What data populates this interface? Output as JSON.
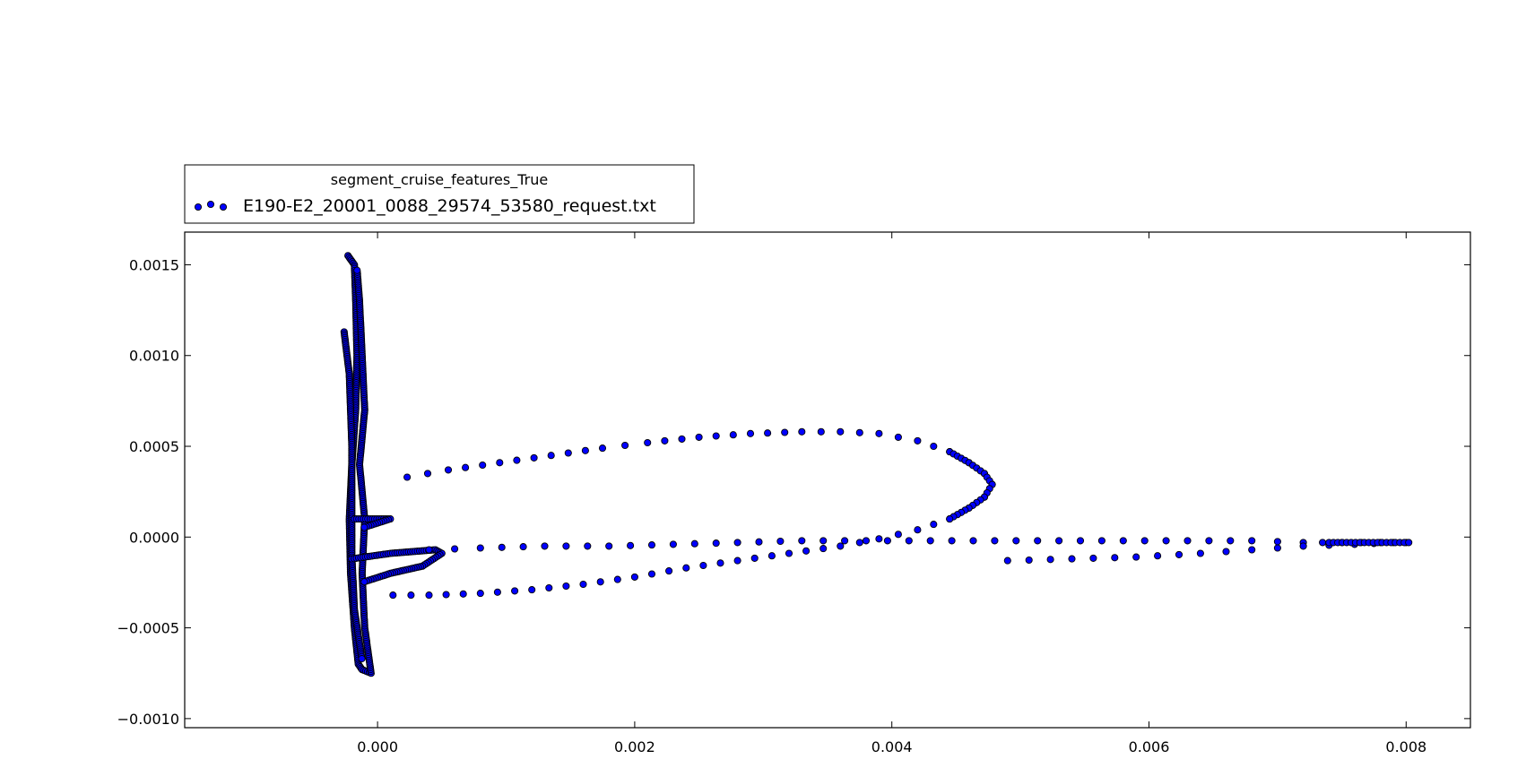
{
  "chart_data": {
    "type": "scatter",
    "title": "",
    "xlabel": "",
    "ylabel": "",
    "xlim": [
      -0.0015,
      0.0085
    ],
    "ylim": [
      -0.00105,
      0.00168
    ],
    "x_ticks": [
      0.0,
      0.002,
      0.004,
      0.006,
      0.008
    ],
    "x_tick_labels": [
      "0.000",
      "0.002",
      "0.004",
      "0.006",
      "0.008"
    ],
    "y_ticks": [
      -0.001,
      -0.0005,
      0.0,
      0.0005,
      0.001,
      0.0015
    ],
    "y_tick_labels": [
      "−0.0010",
      "−0.0005",
      "0.0000",
      "0.0005",
      "0.0010",
      "0.0015"
    ],
    "grid": false,
    "legend": {
      "placement": "above-top-left",
      "title": "segment_cruise_features_True",
      "entries": [
        "E190-E2_20001_0088_29574_53580_request.txt"
      ]
    },
    "marker_color": "#0000ff",
    "marker_edge_color": "#000000",
    "series": [
      {
        "name": "E190-E2_20001_0088_29574_53580_request.txt",
        "loop_upper": [
          [
            0.00023,
            0.00033
          ],
          [
            0.00055,
            0.00037
          ],
          [
            0.00095,
            0.00041
          ],
          [
            0.00135,
            0.00045
          ],
          [
            0.00175,
            0.00049
          ],
          [
            0.0021,
            0.00052
          ],
          [
            0.0025,
            0.00055
          ],
          [
            0.0029,
            0.00057
          ],
          [
            0.0033,
            0.00058
          ],
          [
            0.0036,
            0.00058
          ],
          [
            0.0039,
            0.00057
          ],
          [
            0.0042,
            0.00053
          ],
          [
            0.00445,
            0.00047
          ],
          [
            0.0046,
            0.00041
          ],
          [
            0.00472,
            0.00035
          ],
          [
            0.00478,
            0.00029
          ],
          [
            0.00472,
            0.00022
          ],
          [
            0.0046,
            0.00016
          ],
          [
            0.00445,
            0.0001
          ],
          [
            0.0042,
            4e-05
          ],
          [
            0.0039,
            -1e-05
          ],
          [
            0.0036,
            -5e-05
          ],
          [
            0.0032,
            -9e-05
          ],
          [
            0.0028,
            -0.00013
          ],
          [
            0.0024,
            -0.00017
          ],
          [
            0.002,
            -0.00022
          ],
          [
            0.0016,
            -0.00026
          ],
          [
            0.0012,
            -0.00029
          ],
          [
            0.0008,
            -0.00031
          ],
          [
            0.0004,
            -0.00032
          ],
          [
            0.00012,
            -0.00032
          ]
        ],
        "tail_upper": [
          [
            0.0004,
            -7e-05
          ],
          [
            0.0008,
            -6e-05
          ],
          [
            0.0013,
            -5e-05
          ],
          [
            0.0018,
            -5e-05
          ],
          [
            0.0023,
            -4e-05
          ],
          [
            0.0028,
            -3e-05
          ],
          [
            0.0033,
            -2e-05
          ],
          [
            0.0038,
            -2e-05
          ],
          [
            0.0043,
            -2e-05
          ],
          [
            0.0048,
            -2e-05
          ],
          [
            0.0053,
            -2e-05
          ],
          [
            0.0058,
            -2e-05
          ],
          [
            0.0063,
            -2e-05
          ],
          [
            0.0068,
            -2e-05
          ],
          [
            0.0072,
            -3e-05
          ],
          [
            0.0075,
            -3e-05
          ],
          [
            0.0078,
            -3e-05
          ],
          [
            0.008,
            -3e-05
          ]
        ],
        "tail_lower": [
          [
            0.0049,
            -0.00013
          ],
          [
            0.0054,
            -0.00012
          ],
          [
            0.0059,
            -0.00011
          ],
          [
            0.0064,
            -9e-05
          ],
          [
            0.0068,
            -7e-05
          ],
          [
            0.0072,
            -5e-05
          ],
          [
            0.0076,
            -4e-05
          ],
          [
            0.0079,
            -3e-05
          ]
        ],
        "cluster_trace": [
          [
            -0.00023,
            0.00155
          ],
          [
            -0.00018,
            0.0015
          ],
          [
            -0.00017,
            0.0013
          ],
          [
            -0.00016,
            0.001
          ],
          [
            -0.00017,
            0.0007
          ],
          [
            -0.0002,
            0.0004
          ],
          [
            -0.00022,
            0.0001
          ],
          [
            -0.00021,
            -0.0002
          ],
          [
            -0.00018,
            -0.0005
          ],
          [
            -0.00015,
            -0.0007
          ],
          [
            -0.00012,
            -0.00073
          ],
          [
            -5e-05,
            -0.00075
          ],
          [
            -0.0001,
            -0.0005
          ],
          [
            -0.00012,
            -0.0002
          ],
          [
            -0.0001,
            0.0001
          ],
          [
            -0.00014,
            0.0004
          ],
          [
            -0.0001,
            0.0007
          ],
          [
            -0.00012,
            0.001
          ],
          [
            -0.00014,
            0.0013
          ],
          [
            -0.00016,
            0.00148
          ],
          [
            -0.00026,
            0.00113
          ],
          [
            -0.00022,
            0.0009
          ],
          [
            -0.0002,
            0.0005
          ],
          [
            -0.0002,
            0.0002
          ],
          [
            -0.0002,
            -0.0001
          ],
          [
            -0.00018,
            -0.0004
          ],
          [
            -0.00012,
            -0.00068
          ],
          [
            0.00045,
            -7e-05
          ],
          [
            0.0005,
            -9e-05
          ],
          [
            0.00035,
            -0.00016
          ],
          [
            0.0001,
            -0.0002
          ],
          [
            -0.00012,
            -0.00025
          ],
          [
            0.0001,
            0.0001
          ],
          [
            -0.00012,
            5e-05
          ]
        ]
      }
    ]
  }
}
